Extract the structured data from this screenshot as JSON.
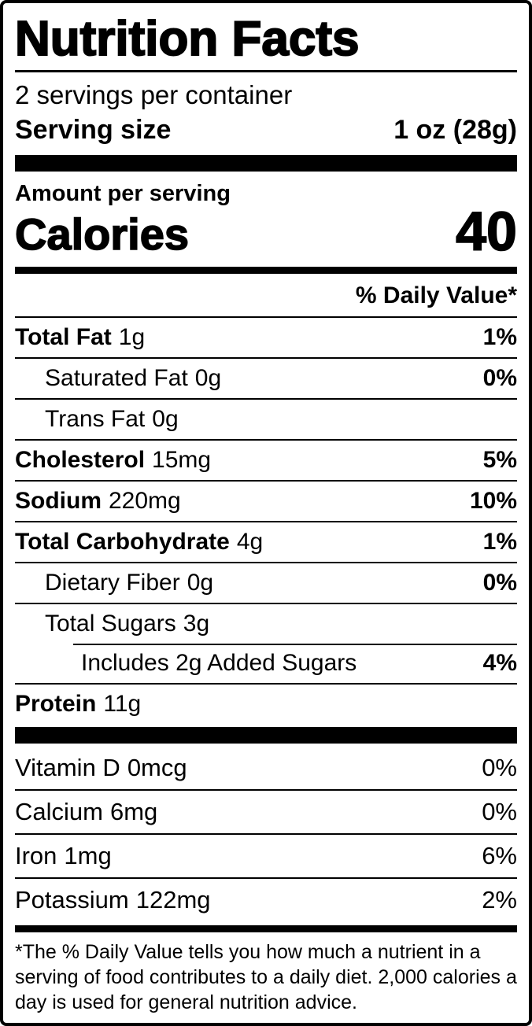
{
  "label": {
    "title": "Nutrition Facts",
    "servings_per_container": "2 servings per container",
    "serving_size_label": "Serving size",
    "serving_size_value": "1 oz (28g)",
    "amount_per_serving": "Amount per serving",
    "calories_label": "Calories",
    "calories_value": "40",
    "daily_value_header": "% Daily Value*",
    "nutrients": [
      {
        "name": "Total Fat",
        "amount": "1g",
        "dv": "1%"
      },
      {
        "name": "Saturated Fat",
        "amount": "0g",
        "dv": "0%"
      },
      {
        "name": "Trans Fat",
        "amount": "0g",
        "dv": ""
      },
      {
        "name": "Cholesterol",
        "amount": "15mg",
        "dv": "5%"
      },
      {
        "name": "Sodium",
        "amount": "220mg",
        "dv": "10%"
      },
      {
        "name": "Total Carbohydrate",
        "amount": "4g",
        "dv": "1%"
      },
      {
        "name": "Dietary Fiber",
        "amount": "0g",
        "dv": "0%"
      },
      {
        "name": "Total Sugars",
        "amount": "3g",
        "dv": ""
      },
      {
        "name": "Includes 2g Added Sugars",
        "amount": "",
        "dv": "4%"
      },
      {
        "name": "Protein",
        "amount": "11g",
        "dv": ""
      }
    ],
    "vitamins": [
      {
        "name": "Vitamin D",
        "amount": "0mcg",
        "dv": "0%"
      },
      {
        "name": "Calcium",
        "amount": "6mg",
        "dv": "0%"
      },
      {
        "name": "Iron",
        "amount": "1mg",
        "dv": "6%"
      },
      {
        "name": "Potassium",
        "amount": "122mg",
        "dv": "2%"
      }
    ],
    "footnote": "*The % Daily Value tells you how much a nutrient in a serving of food contributes to a daily diet. 2,000 calories a day is used for general nutrition advice.",
    "colors": {
      "ink": "#000000",
      "background": "#ffffff"
    }
  }
}
